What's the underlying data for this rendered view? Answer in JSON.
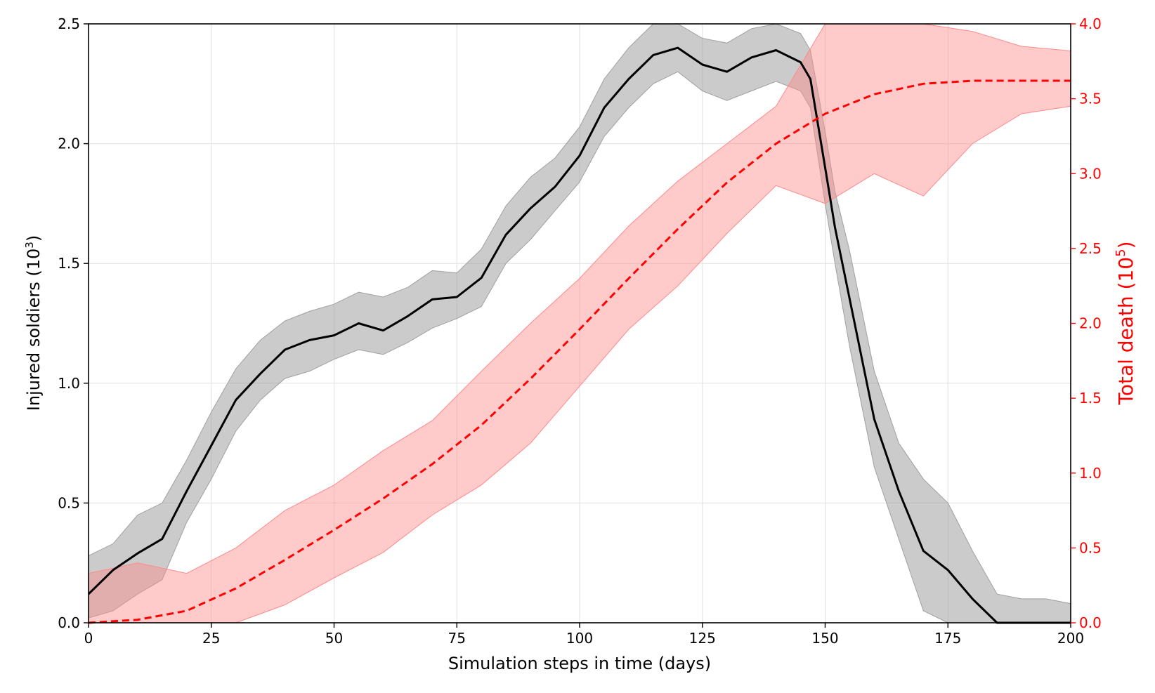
{
  "chart_data": {
    "type": "line",
    "title": "",
    "xlabel": "Simulation steps in time (days)",
    "ylabel": {
      "text": "Injured soldiers (10",
      "sup": "3",
      "close": ")"
    },
    "y2label": {
      "text": "Total death (10",
      "sup": "5",
      "close": ")"
    },
    "xlim": [
      0,
      200
    ],
    "ylim": [
      0,
      2.5
    ],
    "y2lim": [
      0,
      4
    ],
    "xticks": [
      0,
      25,
      50,
      75,
      100,
      125,
      150,
      175,
      200
    ],
    "xtick_labels": [
      "0",
      "25",
      "50",
      "75",
      "100",
      "125",
      "150",
      "175",
      "200"
    ],
    "yticks": [
      0,
      0.5,
      1,
      1.5,
      2,
      2.5
    ],
    "ytick_labels": [
      "0.0",
      "0.5",
      "1.0",
      "1.5",
      "2.0",
      "2.5"
    ],
    "y2ticks": [
      0,
      0.5,
      1,
      1.5,
      2,
      2.5,
      3,
      3.5,
      4
    ],
    "y2tick_labels": [
      "0.0",
      "0.5",
      "1.0",
      "1.5",
      "2.0",
      "2.5",
      "3.0",
      "3.5",
      "4.0"
    ],
    "grid": true,
    "colors": {
      "injured": "#000000",
      "injured_band": "#a0a0a0",
      "death": "#ff0000",
      "death_band": "#ff8a8a",
      "axis": "#000000",
      "right_axis": "#ff0000",
      "grid": "#e0e0e0"
    },
    "series": [
      {
        "name": "Injured soldiers",
        "axis": "left",
        "style": "solid",
        "x": [
          0,
          5,
          10,
          15,
          20,
          25,
          30,
          35,
          40,
          45,
          50,
          55,
          60,
          65,
          70,
          75,
          80,
          85,
          90,
          95,
          100,
          105,
          110,
          115,
          120,
          125,
          130,
          135,
          140,
          145,
          147,
          150,
          152,
          155,
          160,
          165,
          170,
          175,
          180,
          185,
          190,
          195,
          200
        ],
        "values": [
          0.12,
          0.22,
          0.29,
          0.35,
          0.55,
          0.74,
          0.93,
          1.04,
          1.14,
          1.18,
          1.2,
          1.25,
          1.22,
          1.28,
          1.35,
          1.36,
          1.44,
          1.62,
          1.73,
          1.82,
          1.95,
          2.15,
          2.27,
          2.37,
          2.4,
          2.33,
          2.3,
          2.36,
          2.39,
          2.34,
          2.27,
          1.9,
          1.65,
          1.35,
          0.85,
          0.55,
          0.3,
          0.22,
          0.1,
          0.0,
          0.0,
          0.0,
          0.0
        ],
        "lower": [
          0.02,
          0.05,
          0.12,
          0.18,
          0.42,
          0.6,
          0.8,
          0.93,
          1.02,
          1.05,
          1.1,
          1.14,
          1.12,
          1.17,
          1.23,
          1.27,
          1.32,
          1.5,
          1.6,
          1.72,
          1.84,
          2.03,
          2.15,
          2.25,
          2.3,
          2.22,
          2.18,
          2.22,
          2.26,
          2.22,
          2.15,
          1.75,
          1.5,
          1.15,
          0.65,
          0.35,
          0.05,
          0.0,
          0.0,
          0.0,
          0.0,
          0.0,
          0.0
        ],
        "upper": [
          0.28,
          0.33,
          0.45,
          0.5,
          0.68,
          0.88,
          1.06,
          1.18,
          1.26,
          1.3,
          1.33,
          1.38,
          1.36,
          1.4,
          1.47,
          1.46,
          1.56,
          1.74,
          1.86,
          1.94,
          2.07,
          2.27,
          2.4,
          2.5,
          2.52,
          2.44,
          2.42,
          2.48,
          2.5,
          2.46,
          2.39,
          2.05,
          1.8,
          1.55,
          1.05,
          0.75,
          0.6,
          0.5,
          0.3,
          0.12,
          0.1,
          0.1,
          0.08
        ]
      },
      {
        "name": "Total death",
        "axis": "right",
        "style": "dashed",
        "x": [
          0,
          10,
          20,
          30,
          40,
          50,
          60,
          70,
          80,
          90,
          100,
          110,
          120,
          130,
          140,
          150,
          160,
          170,
          180,
          190,
          200
        ],
        "values": [
          0.0,
          0.02,
          0.08,
          0.23,
          0.42,
          0.62,
          0.83,
          1.06,
          1.32,
          1.63,
          1.96,
          2.3,
          2.63,
          2.94,
          3.2,
          3.4,
          3.53,
          3.6,
          3.62,
          3.62,
          3.62
        ],
        "lower": [
          0.0,
          0.0,
          0.0,
          0.0,
          0.12,
          0.3,
          0.47,
          0.72,
          0.92,
          1.2,
          1.58,
          1.96,
          2.25,
          2.6,
          2.92,
          2.8,
          3.0,
          2.85,
          3.2,
          3.4,
          3.45
        ],
        "upper": [
          0.33,
          0.4,
          0.33,
          0.5,
          0.75,
          0.92,
          1.15,
          1.35,
          1.68,
          2.0,
          2.3,
          2.65,
          2.95,
          3.2,
          3.45,
          4.0,
          4.1,
          4.1,
          3.95,
          3.85,
          3.82
        ]
      }
    ]
  }
}
